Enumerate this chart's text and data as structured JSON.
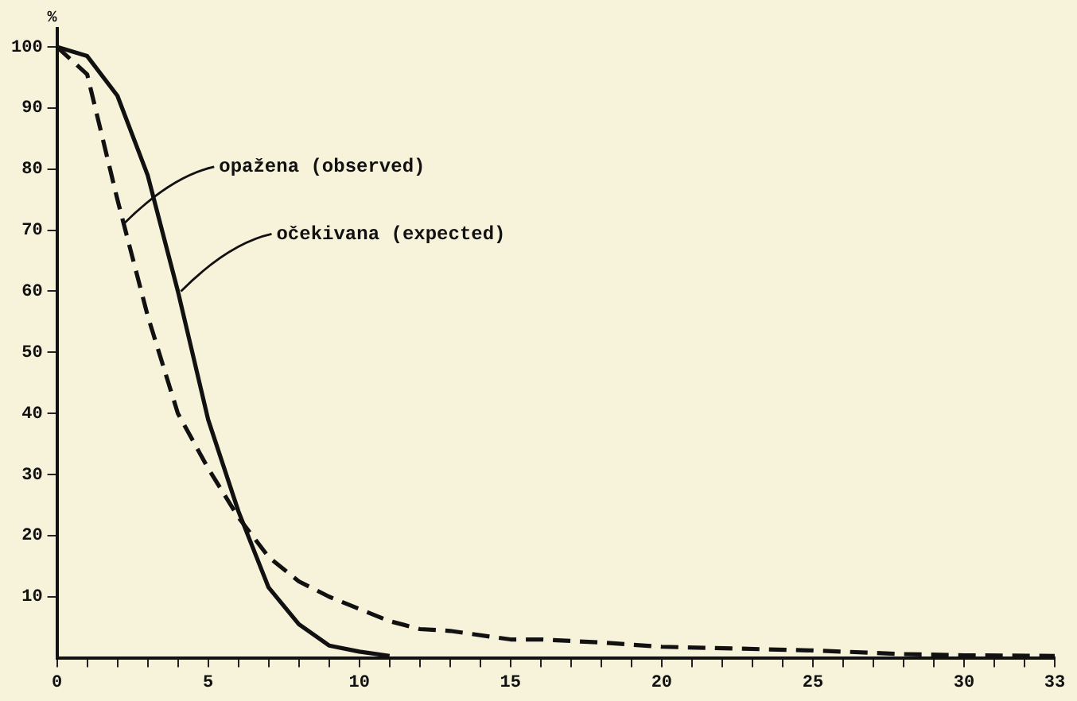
{
  "chart_data": {
    "type": "line",
    "ylabel": "%",
    "grid": false,
    "legend": false,
    "marker": "none",
    "xlim": [
      0,
      33
    ],
    "ylim": [
      0,
      103
    ],
    "xticks": [
      0,
      {
        "value": 1,
        "label": null
      },
      {
        "value": 2,
        "label": null
      },
      {
        "value": 3,
        "label": null
      },
      {
        "value": 4,
        "label": null
      },
      5,
      {
        "value": 6,
        "label": null
      },
      {
        "value": 7,
        "label": null
      },
      {
        "value": 8,
        "label": null
      },
      {
        "value": 9,
        "label": null
      },
      10,
      {
        "value": 11,
        "label": null
      },
      {
        "value": 12,
        "label": null
      },
      {
        "value": 13,
        "label": null
      },
      {
        "value": 14,
        "label": null
      },
      15,
      {
        "value": 16,
        "label": null
      },
      {
        "value": 17,
        "label": null
      },
      {
        "value": 18,
        "label": null
      },
      {
        "value": 19,
        "label": null
      },
      20,
      {
        "value": 21,
        "label": null
      },
      {
        "value": 22,
        "label": null
      },
      {
        "value": 23,
        "label": null
      },
      {
        "value": 24,
        "label": null
      },
      25,
      {
        "value": 26,
        "label": null
      },
      {
        "value": 27,
        "label": null
      },
      {
        "value": 28,
        "label": null
      },
      {
        "value": 29,
        "label": null
      },
      30,
      {
        "value": 31,
        "label": null
      },
      {
        "value": 32,
        "label": null
      },
      33
    ],
    "yticks": [
      10,
      20,
      30,
      40,
      50,
      60,
      70,
      80,
      90,
      100
    ],
    "series": [
      {
        "color": "#111111",
        "line_style": "dashed",
        "x": [
          0,
          1,
          2,
          3,
          4,
          5,
          6,
          7,
          8,
          9,
          10,
          11,
          12,
          13,
          15,
          16,
          18,
          20,
          25,
          28,
          30,
          33
        ],
        "values": [
          100,
          95.5,
          75,
          56,
          40,
          31,
          23,
          16.5,
          12.5,
          10,
          8,
          6,
          4.7,
          4.4,
          3,
          3,
          2.5,
          1.8,
          1.2,
          0.6,
          0.4,
          0.3
        ]
      },
      {
        "color": "#111111",
        "line_style": "solid",
        "x": [
          0,
          1,
          2,
          3,
          4,
          5,
          6,
          7,
          8,
          9,
          10,
          11
        ],
        "values": [
          100,
          98.5,
          92,
          79,
          60,
          39,
          24,
          11.5,
          5.5,
          2,
          1,
          0.3
        ]
      }
    ],
    "annotations": [
      {
        "text": "opažena (observed)",
        "x": 2.2,
        "y": 71
      },
      {
        "text": "očekivana (expected)",
        "x": 4.1,
        "y": 60
      }
    ]
  }
}
